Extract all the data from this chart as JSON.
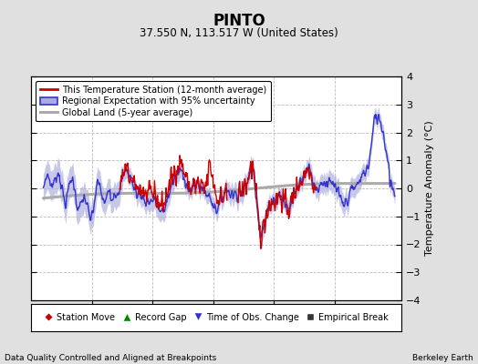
{
  "title": "PINTO",
  "subtitle": "37.550 N, 113.517 W (United States)",
  "ylabel": "Temperature Anomaly (°C)",
  "xlabel_left": "Data Quality Controlled and Aligned at Breakpoints",
  "xlabel_right": "Berkeley Earth",
  "ylim": [
    -4,
    4
  ],
  "xlim": [
    1880,
    1941
  ],
  "xticks": [
    1890,
    1900,
    1910,
    1920,
    1930
  ],
  "yticks": [
    -4,
    -3,
    -2,
    -1,
    0,
    1,
    2,
    3,
    4
  ],
  "bg_color": "#e0e0e0",
  "plot_bg_color": "#ffffff",
  "grid_color": "#bbbbbb",
  "station_color": "#cc0000",
  "regional_color": "#3333cc",
  "regional_fill": "#aaaadd",
  "global_color": "#aaaaaa",
  "legend1_items": [
    {
      "label": "This Temperature Station (12-month average)"
    },
    {
      "label": "Regional Expectation with 95% uncertainty"
    },
    {
      "label": "Global Land (5-year average)"
    }
  ],
  "legend2_items": [
    {
      "label": "Station Move",
      "marker": "D",
      "color": "#cc0000"
    },
    {
      "label": "Record Gap",
      "marker": "^",
      "color": "#008800"
    },
    {
      "label": "Time of Obs. Change",
      "marker": "v",
      "color": "#3333cc"
    },
    {
      "label": "Empirical Break",
      "marker": "s",
      "color": "#333333"
    }
  ]
}
